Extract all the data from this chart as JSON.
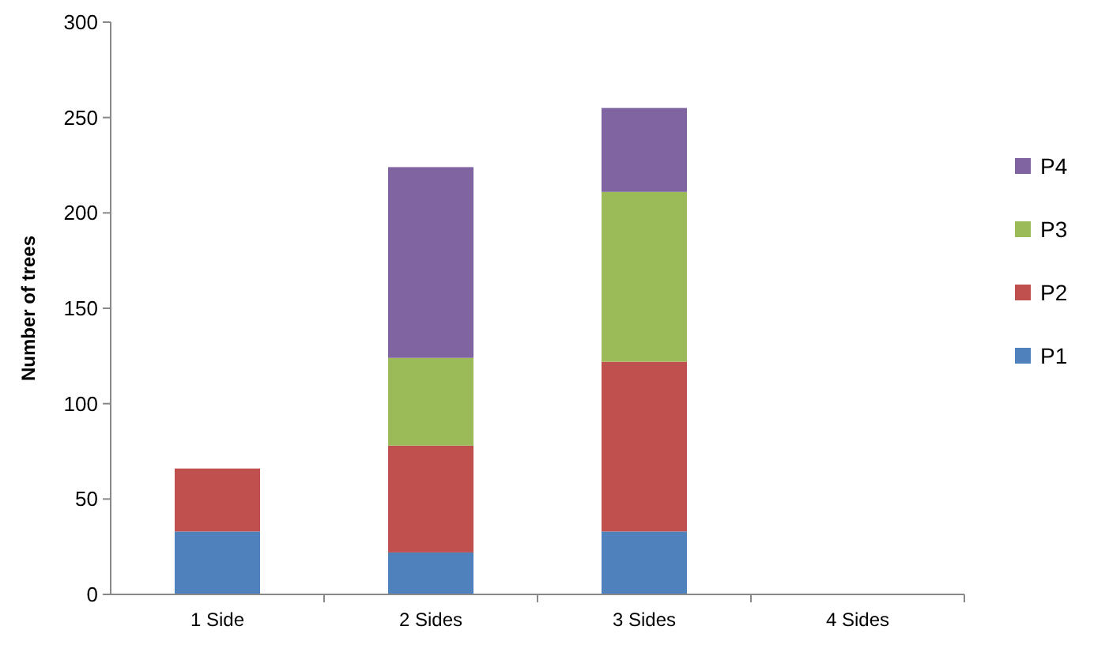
{
  "chart_data": {
    "type": "bar",
    "stacked": true,
    "ylabel": "Number of trees",
    "categories": [
      "1 Side",
      "2 Sides",
      "3 Sides",
      "4 Sides"
    ],
    "series": [
      {
        "name": "P1",
        "color": "#4f81bd",
        "values": [
          33,
          22,
          33,
          null
        ]
      },
      {
        "name": "P2",
        "color": "#c0504d",
        "values": [
          33,
          56,
          89,
          null
        ]
      },
      {
        "name": "P3",
        "color": "#9bbb59",
        "values": [
          null,
          46,
          89,
          null
        ]
      },
      {
        "name": "P4",
        "color": "#8064a2",
        "values": [
          null,
          100,
          44,
          null
        ]
      }
    ],
    "ylim": [
      0,
      300
    ],
    "yticks": [
      0,
      50,
      100,
      150,
      200,
      250,
      300
    ],
    "grid": false,
    "legend": "right"
  }
}
